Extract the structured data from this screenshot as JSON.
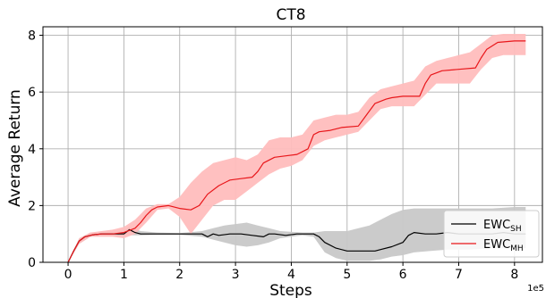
{
  "chart_data": {
    "type": "line",
    "title": "CT8",
    "xlabel": "Steps",
    "ylabel": "Average Return",
    "x_scale_note": "1e5",
    "xlim": [
      -0.45,
      8.5
    ],
    "ylim": [
      0,
      8.3
    ],
    "xticks": [
      0,
      1,
      2,
      3,
      4,
      5,
      6,
      7,
      8
    ],
    "yticks": [
      0,
      2,
      4,
      6,
      8
    ],
    "grid": true,
    "legend_position": "lower-right",
    "series": [
      {
        "name": "EWC",
        "name_sub": "SH",
        "color": "#000000",
        "band_color": "#c8c8c8",
        "points": [
          [
            0,
            0
          ],
          [
            0.1,
            0.4
          ],
          [
            0.2,
            0.75
          ],
          [
            0.3,
            0.9
          ],
          [
            0.45,
            0.97
          ],
          [
            0.6,
            1.0
          ],
          [
            0.8,
            1.0
          ],
          [
            1.0,
            1.0
          ],
          [
            1.1,
            1.15
          ],
          [
            1.2,
            1.05
          ],
          [
            1.3,
            1.0
          ],
          [
            1.6,
            1.0
          ],
          [
            2.0,
            1.0
          ],
          [
            2.4,
            1.0
          ],
          [
            2.5,
            0.9
          ],
          [
            2.6,
            1.0
          ],
          [
            2.7,
            0.95
          ],
          [
            2.9,
            1.0
          ],
          [
            3.1,
            1.0
          ],
          [
            3.3,
            0.95
          ],
          [
            3.5,
            0.9
          ],
          [
            3.6,
            1.0
          ],
          [
            3.7,
            1.0
          ],
          [
            3.9,
            0.95
          ],
          [
            4.1,
            1.0
          ],
          [
            4.4,
            1.0
          ],
          [
            4.5,
            0.9
          ],
          [
            4.6,
            0.7
          ],
          [
            4.8,
            0.5
          ],
          [
            5.0,
            0.4
          ],
          [
            5.5,
            0.4
          ],
          [
            5.6,
            0.45
          ],
          [
            5.8,
            0.55
          ],
          [
            6.0,
            0.7
          ],
          [
            6.1,
            0.95
          ],
          [
            6.2,
            1.05
          ],
          [
            6.4,
            1.0
          ],
          [
            6.6,
            1.0
          ],
          [
            6.8,
            1.05
          ],
          [
            7.0,
            1.0
          ],
          [
            7.2,
            1.0
          ],
          [
            7.4,
            1.0
          ],
          [
            7.6,
            1.0
          ],
          [
            7.8,
            1.05
          ],
          [
            8.0,
            1.0
          ],
          [
            8.2,
            1.0
          ]
        ],
        "band": [
          [
            0,
            0,
            0
          ],
          [
            0.2,
            0.65,
            0.85
          ],
          [
            0.4,
            0.9,
            1.05
          ],
          [
            0.6,
            0.95,
            1.05
          ],
          [
            0.9,
            0.95,
            1.08
          ],
          [
            1.1,
            0.95,
            1.25
          ],
          [
            1.3,
            0.95,
            1.1
          ],
          [
            1.6,
            0.97,
            1.05
          ],
          [
            2.0,
            0.97,
            1.03
          ],
          [
            2.4,
            0.9,
            1.1
          ],
          [
            2.6,
            0.8,
            1.2
          ],
          [
            2.8,
            0.7,
            1.3
          ],
          [
            3.0,
            0.6,
            1.35
          ],
          [
            3.2,
            0.55,
            1.4
          ],
          [
            3.4,
            0.6,
            1.3
          ],
          [
            3.6,
            0.7,
            1.2
          ],
          [
            3.8,
            0.85,
            1.1
          ],
          [
            4.2,
            0.95,
            1.05
          ],
          [
            4.4,
            0.9,
            1.05
          ],
          [
            4.6,
            0.35,
            1.1
          ],
          [
            4.8,
            0.15,
            1.1
          ],
          [
            5.0,
            0.05,
            1.1
          ],
          [
            5.4,
            0.05,
            1.3
          ],
          [
            5.6,
            0.1,
            1.5
          ],
          [
            5.8,
            0.2,
            1.7
          ],
          [
            6.0,
            0.25,
            1.85
          ],
          [
            6.2,
            0.35,
            1.9
          ],
          [
            6.5,
            0.4,
            1.9
          ],
          [
            6.8,
            0.45,
            1.9
          ],
          [
            7.2,
            0.45,
            1.9
          ],
          [
            7.6,
            0.5,
            1.9
          ],
          [
            8.0,
            0.5,
            1.95
          ],
          [
            8.2,
            0.5,
            1.95
          ]
        ]
      },
      {
        "name": "EWC",
        "name_sub": "MH",
        "color": "#e8161a",
        "band_color": "#ffbdbd",
        "points": [
          [
            0,
            0
          ],
          [
            0.1,
            0.4
          ],
          [
            0.2,
            0.75
          ],
          [
            0.3,
            0.9
          ],
          [
            0.45,
            0.97
          ],
          [
            0.6,
            1.0
          ],
          [
            0.8,
            1.0
          ],
          [
            1.0,
            1.05
          ],
          [
            1.2,
            1.2
          ],
          [
            1.3,
            1.4
          ],
          [
            1.4,
            1.65
          ],
          [
            1.5,
            1.85
          ],
          [
            1.6,
            1.95
          ],
          [
            1.8,
            2.0
          ],
          [
            2.0,
            1.9
          ],
          [
            2.2,
            1.85
          ],
          [
            2.35,
            2.0
          ],
          [
            2.5,
            2.4
          ],
          [
            2.7,
            2.7
          ],
          [
            2.9,
            2.9
          ],
          [
            3.1,
            2.95
          ],
          [
            3.3,
            3.0
          ],
          [
            3.4,
            3.2
          ],
          [
            3.5,
            3.5
          ],
          [
            3.7,
            3.7
          ],
          [
            3.9,
            3.75
          ],
          [
            4.1,
            3.8
          ],
          [
            4.3,
            4.0
          ],
          [
            4.4,
            4.5
          ],
          [
            4.5,
            4.6
          ],
          [
            4.7,
            4.65
          ],
          [
            4.9,
            4.75
          ],
          [
            5.2,
            4.8
          ],
          [
            5.35,
            5.2
          ],
          [
            5.5,
            5.6
          ],
          [
            5.7,
            5.75
          ],
          [
            5.8,
            5.8
          ],
          [
            6.0,
            5.85
          ],
          [
            6.3,
            5.85
          ],
          [
            6.4,
            6.3
          ],
          [
            6.5,
            6.6
          ],
          [
            6.7,
            6.75
          ],
          [
            7.0,
            6.8
          ],
          [
            7.3,
            6.85
          ],
          [
            7.4,
            7.2
          ],
          [
            7.5,
            7.5
          ],
          [
            7.7,
            7.75
          ],
          [
            8.0,
            7.8
          ],
          [
            8.2,
            7.8
          ]
        ],
        "band": [
          [
            0,
            0,
            0
          ],
          [
            0.2,
            0.65,
            0.85
          ],
          [
            0.4,
            0.9,
            1.05
          ],
          [
            0.6,
            0.9,
            1.1
          ],
          [
            0.8,
            0.9,
            1.15
          ],
          [
            1.0,
            0.85,
            1.25
          ],
          [
            1.2,
            1.0,
            1.5
          ],
          [
            1.4,
            1.4,
            1.9
          ],
          [
            1.6,
            1.85,
            2.05
          ],
          [
            1.8,
            1.9,
            2.05
          ],
          [
            2.0,
            1.6,
            2.3
          ],
          [
            2.2,
            1.0,
            2.8
          ],
          [
            2.4,
            1.5,
            3.2
          ],
          [
            2.6,
            2.0,
            3.5
          ],
          [
            2.8,
            2.2,
            3.6
          ],
          [
            3.0,
            2.2,
            3.7
          ],
          [
            3.2,
            2.5,
            3.6
          ],
          [
            3.4,
            2.8,
            3.8
          ],
          [
            3.6,
            3.1,
            4.3
          ],
          [
            3.8,
            3.3,
            4.4
          ],
          [
            4.0,
            3.4,
            4.4
          ],
          [
            4.2,
            3.6,
            4.5
          ],
          [
            4.4,
            4.1,
            5.0
          ],
          [
            4.6,
            4.3,
            5.1
          ],
          [
            4.8,
            4.4,
            5.2
          ],
          [
            5.0,
            4.5,
            5.2
          ],
          [
            5.2,
            4.6,
            5.3
          ],
          [
            5.4,
            5.0,
            5.8
          ],
          [
            5.6,
            5.4,
            6.1
          ],
          [
            5.8,
            5.5,
            6.2
          ],
          [
            6.0,
            5.5,
            6.3
          ],
          [
            6.2,
            5.5,
            6.4
          ],
          [
            6.4,
            5.9,
            6.9
          ],
          [
            6.6,
            6.3,
            7.1
          ],
          [
            6.8,
            6.3,
            7.2
          ],
          [
            7.0,
            6.3,
            7.3
          ],
          [
            7.2,
            6.3,
            7.4
          ],
          [
            7.4,
            6.8,
            7.7
          ],
          [
            7.6,
            7.2,
            8.0
          ],
          [
            7.8,
            7.3,
            8.05
          ],
          [
            8.0,
            7.3,
            8.05
          ],
          [
            8.2,
            7.3,
            8.05
          ]
        ]
      }
    ]
  }
}
